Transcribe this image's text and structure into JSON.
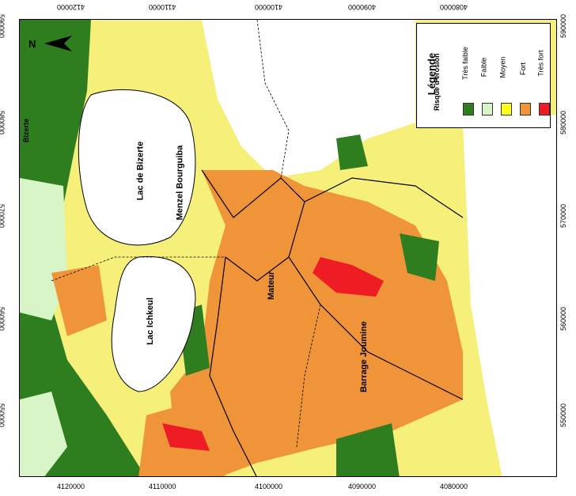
{
  "legend": {
    "title": "Légende",
    "subtitle": "Risque d'érosion",
    "classes": [
      {
        "label": "Très faible",
        "color": "#2e7d1f"
      },
      {
        "label": "Faible",
        "color": "#d8f5c8"
      },
      {
        "label": "Moyen",
        "color": "#ffff1a"
      },
      {
        "label": "Fort",
        "color": "#f0943a"
      },
      {
        "label": "Très fort",
        "color": "#ee1c24"
      }
    ]
  },
  "north": "N",
  "places": {
    "lac_bizerte": "Lac de Bizerte",
    "menzel": "Menzel Bourguiba",
    "lac_ichkeul": "Lac Ichkeul",
    "mateur": "Mateur",
    "barrage": "Barrage Joumine",
    "bizerte_town": "Bizerte"
  },
  "ticks": {
    "top": [
      "4120000",
      "4110000",
      "4100000",
      "4090000",
      "4080000"
    ],
    "bottom": [
      "4120000",
      "4110000",
      "4100000",
      "4090000",
      "4080000"
    ],
    "left": [
      "590000",
      "580000",
      "570000",
      "560000",
      "550000"
    ],
    "right": [
      "590000",
      "580000",
      "570000",
      "560000",
      "550000"
    ]
  }
}
